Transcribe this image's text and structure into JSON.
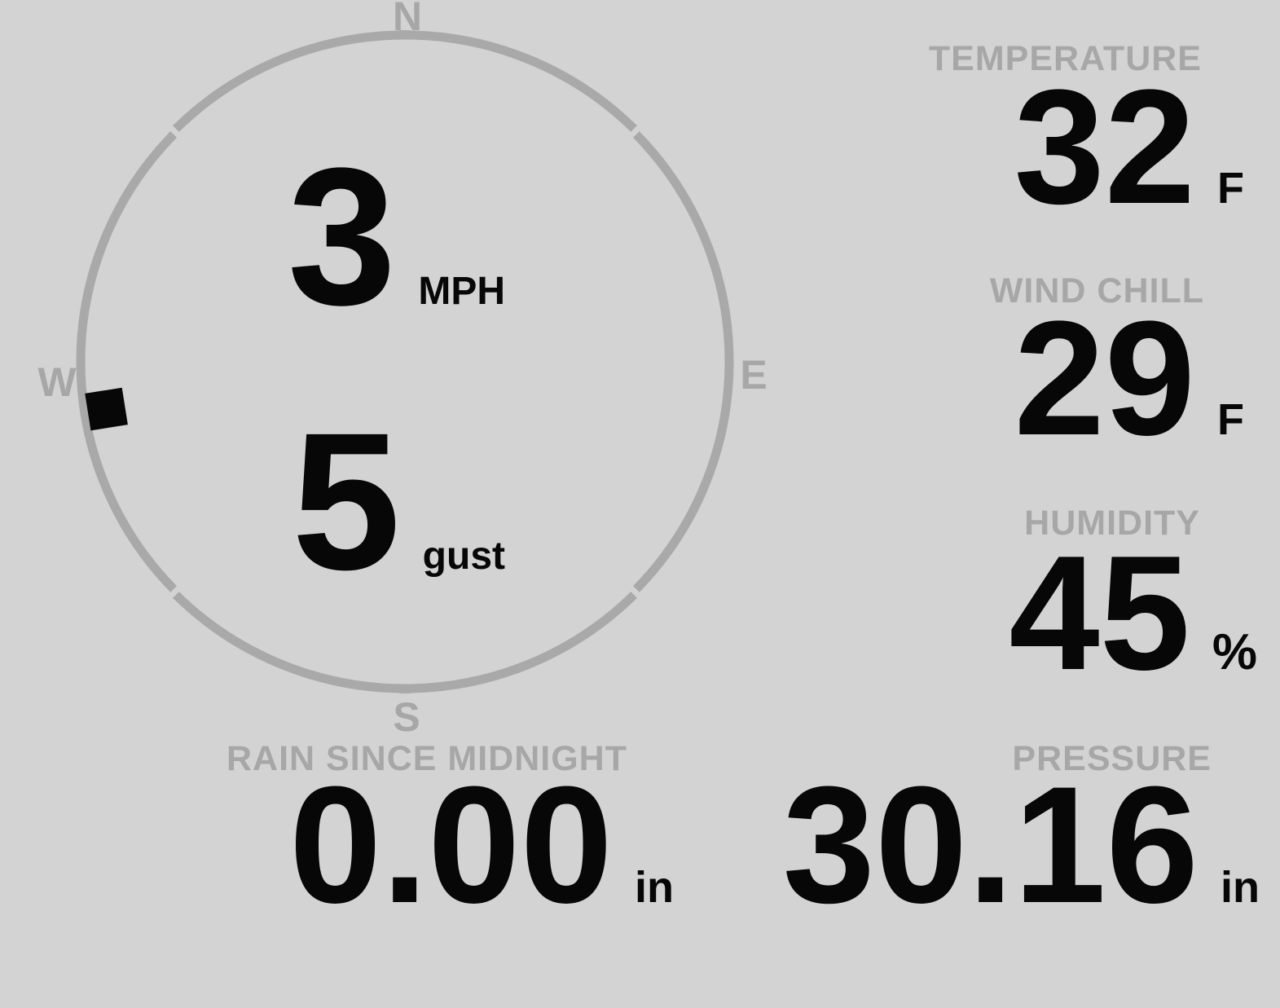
{
  "colors": {
    "background": "#d3d3d4",
    "muted_gray": "#a7a7a7",
    "ink_black": "#070707"
  },
  "compass": {
    "cardinals": [
      {
        "id": "north",
        "label": "N"
      },
      {
        "id": "east",
        "label": "E"
      },
      {
        "id": "south",
        "label": "S"
      },
      {
        "id": "west",
        "label": "W"
      }
    ],
    "wind_direction_deg": 261,
    "speed": {
      "value": "3",
      "unit": "MPH"
    },
    "gust": {
      "value": "5",
      "unit": "gust"
    }
  },
  "metrics": {
    "temperature": {
      "label": "TEMPERATURE",
      "value": "32",
      "unit": "F"
    },
    "wind_chill": {
      "label": "WIND CHILL",
      "value": "29",
      "unit": "F"
    },
    "humidity": {
      "label": "HUMIDITY",
      "value": "45",
      "unit": "%"
    },
    "rain_since_midnight": {
      "label": "RAIN SINCE MIDNIGHT",
      "value": "0.00",
      "unit": "in"
    },
    "pressure": {
      "label": "PRESSURE",
      "value": "30.16",
      "unit": "in"
    }
  }
}
